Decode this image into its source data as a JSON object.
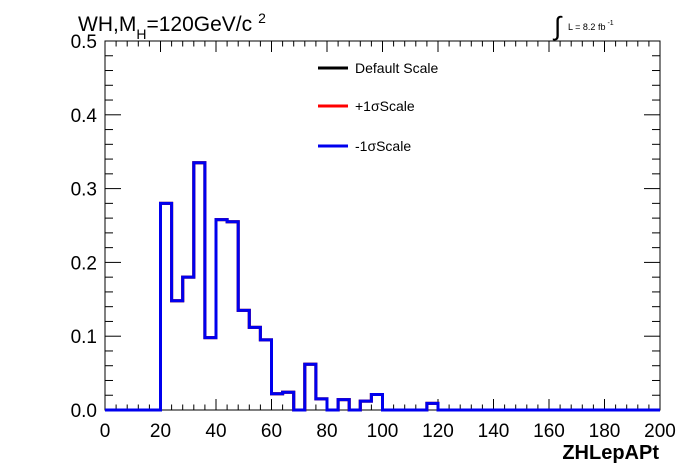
{
  "chart_data": {
    "type": "line",
    "title": {
      "main": "WH,M",
      "subscript": "H",
      "rest": "=120GeV/c",
      "superscript": "2"
    },
    "luminosity": {
      "integral_symbol": "∫",
      "text": "L = 8.2 fb",
      "superscript": "-1"
    },
    "xlabel": "ZHLepAPt",
    "ylabel": "",
    "xlim": [
      0,
      200
    ],
    "ylim": [
      0,
      0.5
    ],
    "x_ticks": [
      0,
      20,
      40,
      60,
      80,
      100,
      120,
      140,
      160,
      180,
      200
    ],
    "x_tick_labels": [
      "0",
      "20",
      "40",
      "60",
      "80",
      "100",
      "120",
      "140",
      "160",
      "180",
      "200"
    ],
    "y_ticks": [
      0,
      0.1,
      0.2,
      0.3,
      0.4,
      0.5
    ],
    "y_tick_labels": [
      "0.0",
      "0.1",
      "0.2",
      "0.3",
      "0.4",
      "0.5"
    ],
    "bin_width": 4,
    "bin_edges_start": 0,
    "series": [
      {
        "name": "Default Scale",
        "color": "#000000",
        "values": [
          0,
          0,
          0,
          0,
          0,
          0.28,
          0.148,
          0.18,
          0.335,
          0.098,
          0.258,
          0.255,
          0.135,
          0.112,
          0.095,
          0.022,
          0.024,
          0,
          0.062,
          0.015,
          0,
          0.014,
          0,
          0.012,
          0.021,
          0,
          0,
          0,
          0,
          0.009,
          0,
          0,
          0,
          0,
          0,
          0,
          0,
          0,
          0,
          0,
          0,
          0,
          0,
          0,
          0,
          0,
          0,
          0,
          0,
          0
        ]
      },
      {
        "name": "+1σScale",
        "color": "#ff0000",
        "values": [
          0,
          0,
          0,
          0,
          0,
          0.28,
          0.148,
          0.18,
          0.335,
          0.098,
          0.258,
          0.255,
          0.135,
          0.112,
          0.095,
          0.022,
          0.024,
          0,
          0.062,
          0.015,
          0,
          0.014,
          0,
          0.012,
          0.021,
          0,
          0,
          0,
          0,
          0.009,
          0,
          0,
          0,
          0,
          0,
          0,
          0,
          0,
          0,
          0,
          0,
          0,
          0,
          0,
          0,
          0,
          0,
          0,
          0,
          0
        ]
      },
      {
        "name": "-1σScale",
        "color": "#0000ee",
        "values": [
          0,
          0,
          0,
          0,
          0,
          0.28,
          0.148,
          0.18,
          0.335,
          0.098,
          0.258,
          0.255,
          0.135,
          0.112,
          0.095,
          0.022,
          0.024,
          0,
          0.062,
          0.015,
          0,
          0.014,
          0,
          0.012,
          0.021,
          0,
          0,
          0,
          0,
          0.009,
          0,
          0,
          0,
          0,
          0,
          0,
          0,
          0,
          0,
          0,
          0,
          0,
          0,
          0,
          0,
          0,
          0,
          0,
          0,
          0
        ]
      }
    ],
    "grid": false,
    "legend_position": "top-center"
  }
}
